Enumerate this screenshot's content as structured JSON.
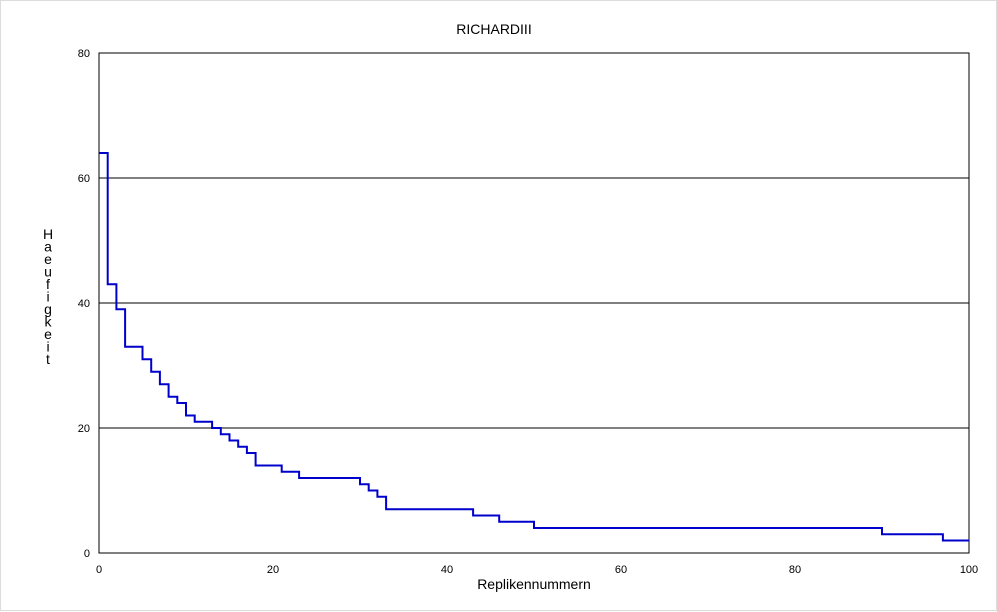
{
  "chart_data": {
    "type": "line",
    "title": "RICHARDIII",
    "xlabel": "Replikennummern",
    "ylabel": "Haeufigkeit",
    "xlim": [
      0,
      100
    ],
    "ylim": [
      0,
      80
    ],
    "x_ticks": [
      "0",
      "20",
      "40",
      "60",
      "80",
      "100"
    ],
    "y_ticks": [
      "0",
      "20",
      "40",
      "60",
      "80"
    ],
    "grid": "horizontal",
    "line_color": "#0000cc",
    "series": [
      {
        "step": "post",
        "x": [
          0,
          1,
          2,
          3,
          5,
          6,
          7,
          8,
          9,
          10,
          11,
          13,
          14,
          15,
          16,
          17,
          18,
          21,
          23,
          30,
          31,
          32,
          33,
          43,
          46,
          50,
          90,
          97,
          100
        ],
        "y": [
          64,
          43,
          39,
          33,
          31,
          29,
          27,
          25,
          24,
          22,
          21,
          20,
          19,
          18,
          17,
          16,
          14,
          13,
          12,
          11,
          10,
          9,
          7,
          6,
          5,
          4,
          3,
          2,
          2
        ]
      }
    ]
  }
}
